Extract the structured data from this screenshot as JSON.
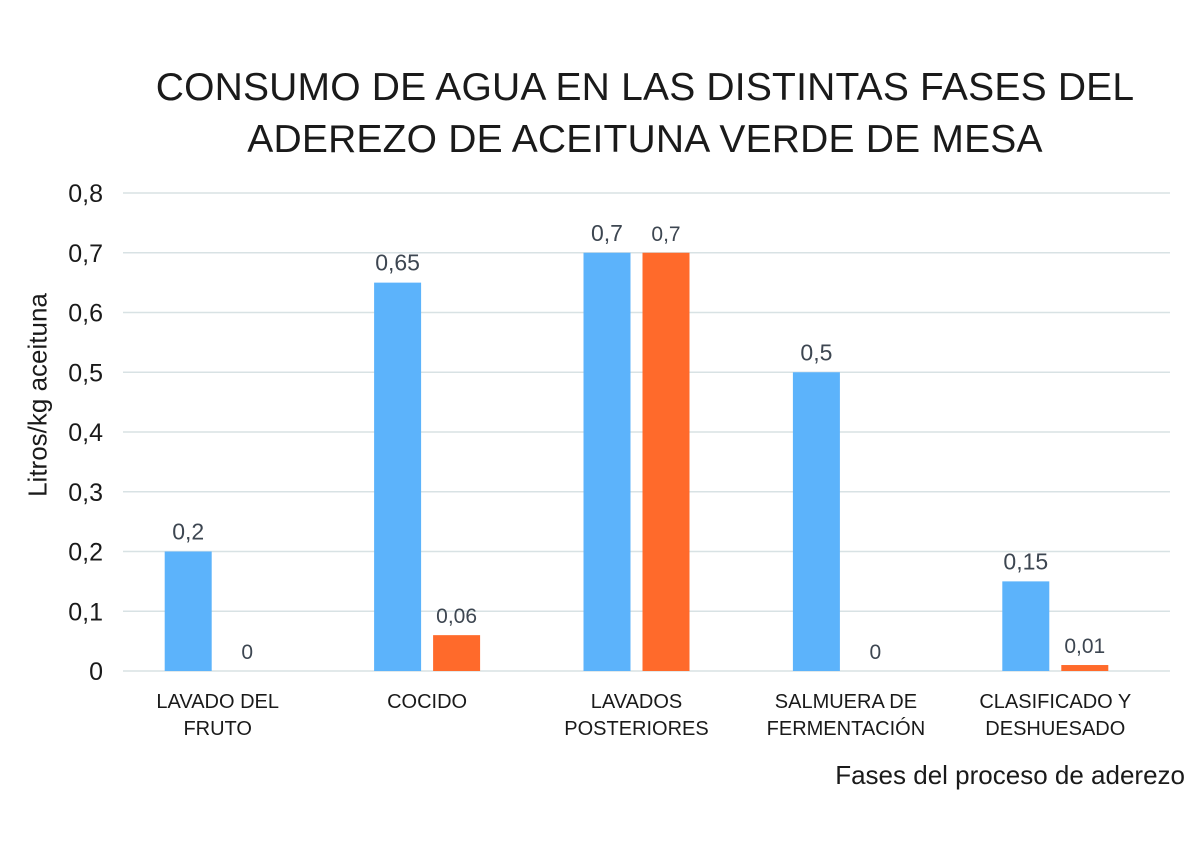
{
  "chart_data": {
    "type": "bar",
    "title_lines": [
      "CONSUMO DE AGUA EN LAS DISTINTAS FASES DEL",
      "ADEREZO DE ACEITUNA VERDE DE MESA"
    ],
    "xlabel": "Fases del proceso de aderezo",
    "ylabel": "Litros/kg aceituna",
    "ylim": [
      0,
      0.8
    ],
    "yticks": [
      "0",
      "0,1",
      "0,2",
      "0,3",
      "0,4",
      "0,5",
      "0,6",
      "0,7",
      "0,8"
    ],
    "grid": true,
    "legend": "none",
    "categories": [
      [
        "LAVADO DEL",
        "FRUTO"
      ],
      [
        "COCIDO"
      ],
      [
        "LAVADOS",
        "POSTERIORES"
      ],
      [
        "SALMUERA DE",
        "FERMENTACIÓN"
      ],
      [
        "CLASIFICADO Y",
        "DESHUESADO"
      ]
    ],
    "series": [
      {
        "color": "#5cb3fb",
        "values": [
          0.2,
          0.65,
          0.7,
          0.5,
          0.15
        ],
        "labels": [
          "0,2",
          "0,65",
          "0,7",
          "0,5",
          "0,15"
        ]
      },
      {
        "color": "#ff6a2b",
        "values": [
          0,
          0.06,
          0.7,
          0,
          0.01
        ],
        "labels": [
          "0",
          "0,06",
          "0,7",
          "0",
          "0,01"
        ]
      }
    ]
  }
}
